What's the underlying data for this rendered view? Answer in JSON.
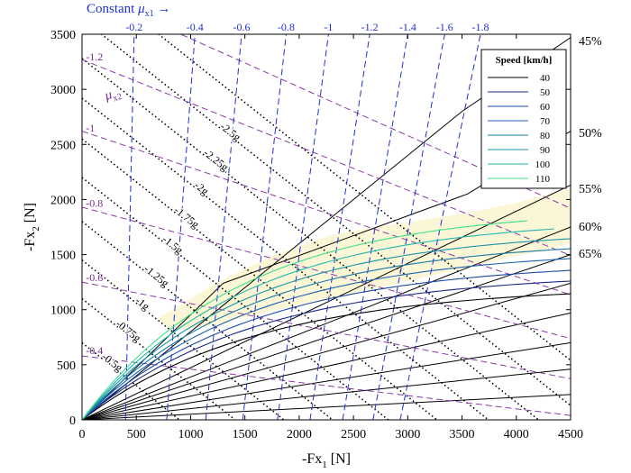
{
  "chart_data": {
    "type": "line",
    "xlabel_main": "-Fx",
    "xlabel_sub": "1",
    "xlabel_unit": " [N]",
    "ylabel_main": "-Fx",
    "ylabel_sub": "2",
    "ylabel_unit": " [N]",
    "xlim": [
      0,
      4500
    ],
    "ylim": [
      0,
      3500
    ],
    "xticks": [
      0,
      500,
      1000,
      1500,
      2000,
      2500,
      3000,
      3500,
      4000,
      4500
    ],
    "yticks": [
      0,
      500,
      1000,
      1500,
      2000,
      2500,
      3000,
      3500
    ],
    "grid": false,
    "mu1_title_main": "Constant ",
    "mu1_title_mu": "μ",
    "mu1_title_sub": "x1",
    "mu1_title_arrow": " →",
    "mu2_label_mu": "μ",
    "mu2_label_sub": "x2",
    "mu1_lines": [
      {
        "label": "-0.2",
        "x_bottom": 400,
        "x_top": 480
      },
      {
        "label": "-0.4",
        "x_bottom": 780,
        "x_top": 1040
      },
      {
        "label": "-0.6",
        "x_bottom": 1140,
        "x_top": 1470
      },
      {
        "label": "-0.8",
        "x_bottom": 1480,
        "x_top": 1880
      },
      {
        "label": "-1",
        "x_bottom": 1800,
        "x_top": 2270
      },
      {
        "label": "-1.2",
        "x_bottom": 2100,
        "x_top": 2650
      },
      {
        "label": "-1.4",
        "x_bottom": 2400,
        "x_top": 3000
      },
      {
        "label": "-1.6",
        "x_bottom": 2680,
        "x_top": 3340
      },
      {
        "label": "-1.8",
        "x_bottom": 2930,
        "x_top": 3670
      }
    ],
    "mu2_lines": [
      {
        "label": "-0.4",
        "y_left": 580,
        "slope": -0.12
      },
      {
        "label": "-0.6",
        "y_left": 1250,
        "slope": -0.195
      },
      {
        "label": "-0.8",
        "y_left": 1930,
        "slope": -0.265
      },
      {
        "label": "-1",
        "y_left": 2620,
        "slope": -0.33
      },
      {
        "label": "-1.2",
        "y_left": 3270,
        "slope": -0.395
      },
      {
        "label": "",
        "y_left": 3900,
        "slope": -0.44
      }
    ],
    "g_lines": [
      {
        "label": "-0.5g",
        "c": 700
      },
      {
        "label": "-0.75g",
        "c": 1100
      },
      {
        "label": "-1g",
        "c": 1450
      },
      {
        "label": "-1.25g",
        "c": 1800
      },
      {
        "label": "-1.5g",
        "c": 2200
      },
      {
        "label": "-1.75g",
        "c": 2550
      },
      {
        "label": "-2g",
        "c": 2920
      },
      {
        "label": "-2.25g",
        "c": 3280
      },
      {
        "label": "-2.5g",
        "c": 3640
      },
      {
        "label": "",
        "c": 4050
      }
    ],
    "g_slope": -0.78,
    "percent_lines": [
      {
        "label": "45%",
        "x": [
          0,
          3500,
          4500
        ],
        "y": [
          0,
          2800,
          3470
        ]
      },
      {
        "label": "50%",
        "x": [
          0,
          1300,
          3550,
          4500
        ],
        "y": [
          0,
          1240,
          2050,
          2620
        ]
      },
      {
        "label": "55%",
        "x": [
          0,
          4500
        ],
        "y": [
          0,
          2130
        ]
      },
      {
        "label": "60%",
        "x": [
          0,
          4500
        ],
        "y": [
          0,
          1750
        ]
      },
      {
        "label": "65%",
        "x": [
          0,
          4500
        ],
        "y": [
          0,
          1500
        ]
      },
      {
        "label": "",
        "x": [
          0,
          4500
        ],
        "y": [
          0,
          1240
        ]
      },
      {
        "label": "",
        "x": [
          0,
          4500
        ],
        "y": [
          0,
          970
        ]
      },
      {
        "label": "",
        "x": [
          0,
          4500
        ],
        "y": [
          0,
          700
        ]
      },
      {
        "label": "",
        "x": [
          0,
          4500
        ],
        "y": [
          0,
          460
        ]
      },
      {
        "label": "",
        "x": [
          0,
          4500
        ],
        "y": [
          0,
          230
        ]
      }
    ],
    "region_polygon": {
      "x": [
        700,
        1250,
        1780,
        2300,
        2900,
        3500,
        4000,
        4500,
        4500,
        3500,
        2500,
        1800,
        1200,
        950,
        800,
        700
      ],
      "y": [
        920,
        1250,
        1500,
        1680,
        1780,
        1870,
        1970,
        2100,
        1600,
        1370,
        1150,
        1000,
        860,
        820,
        830,
        920
      ]
    },
    "legend_title": "Speed [km/h]",
    "legend_position": "top-right",
    "speed_series": [
      {
        "name": "40",
        "color": "#000000",
        "yc": 1220,
        "k": 1620,
        "xend": 4500
      },
      {
        "name": "50",
        "color": "#1a2a86",
        "yc": 1340,
        "k": 1600,
        "xend": 4500
      },
      {
        "name": "60",
        "color": "#1d4ba6",
        "yc": 1440,
        "k": 1580,
        "xend": 4500
      },
      {
        "name": "70",
        "color": "#1b63b0",
        "yc": 1550,
        "k": 1560,
        "xend": 4500
      },
      {
        "name": "80",
        "color": "#187aa8",
        "yc": 1640,
        "k": 1530,
        "xend": 4500
      },
      {
        "name": "90",
        "color": "#1893a8",
        "yc": 1730,
        "k": 1500,
        "xend": 4500
      },
      {
        "name": "100",
        "color": "#22b7b0",
        "yc": 1830,
        "k": 1480,
        "xend": 4350
      },
      {
        "name": "110",
        "color": "#3ee08a",
        "yc": 1920,
        "k": 1450,
        "xend": 4100
      }
    ]
  }
}
